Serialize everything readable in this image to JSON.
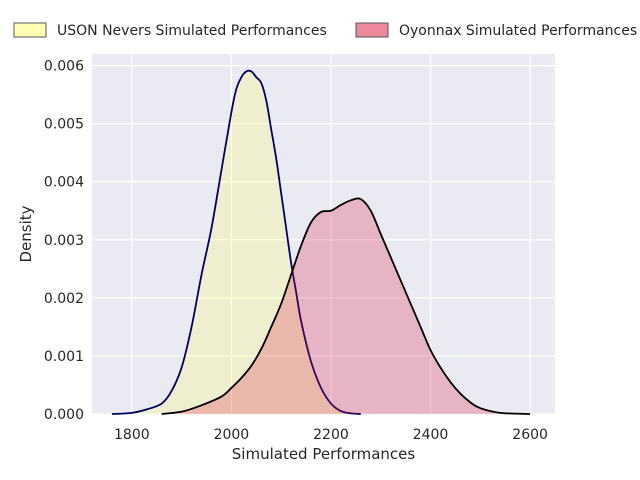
{
  "chart_data": {
    "type": "area",
    "title": "",
    "xlabel": "Simulated Performances",
    "ylabel": "Density",
    "xlim": [
      1720,
      2650
    ],
    "ylim": [
      0,
      0.0062
    ],
    "xticks": [
      1800,
      2000,
      2200,
      2400,
      2600
    ],
    "xtick_labels": [
      "1800",
      "2000",
      "2200",
      "2400",
      "2600"
    ],
    "yticks": [
      0,
      0.001,
      0.002,
      0.003,
      0.004,
      0.005,
      0.006
    ],
    "ytick_labels": [
      "0.000",
      "0.001",
      "0.002",
      "0.003",
      "0.004",
      "0.005",
      "0.006"
    ],
    "grid": true,
    "legend_position": "top",
    "background_color": "#eaeaf2",
    "series": [
      {
        "name": "USON Nevers Simulated Performances",
        "fill_color": "#ffff66",
        "line_color": "#000066",
        "x": [
          1760,
          1800,
          1830,
          1860,
          1880,
          1900,
          1920,
          1940,
          1960,
          1980,
          2000,
          2010,
          2020,
          2030,
          2040,
          2050,
          2060,
          2070,
          2080,
          2090,
          2100,
          2110,
          2120,
          2130,
          2140,
          2160,
          2180,
          2200,
          2220,
          2240,
          2260
        ],
        "y": [
          0.0,
          2e-05,
          8e-05,
          0.00018,
          0.0004,
          0.0008,
          0.0015,
          0.0024,
          0.0032,
          0.0042,
          0.0052,
          0.0056,
          0.0058,
          0.0059,
          0.0059,
          0.0058,
          0.0057,
          0.0054,
          0.0049,
          0.0044,
          0.0038,
          0.0032,
          0.0026,
          0.0021,
          0.0016,
          0.0009,
          0.00045,
          0.00018,
          5e-05,
          1e-05,
          0.0
        ]
      },
      {
        "name": "Oyonnax Simulated Performances",
        "fill_color": "#dc143c",
        "line_color": "#000000",
        "x": [
          1860,
          1900,
          1940,
          1980,
          2000,
          2020,
          2040,
          2060,
          2080,
          2100,
          2120,
          2140,
          2160,
          2180,
          2200,
          2220,
          2240,
          2260,
          2280,
          2300,
          2320,
          2340,
          2360,
          2380,
          2400,
          2420,
          2440,
          2460,
          2480,
          2500,
          2540,
          2600
        ],
        "y": [
          0.0,
          4e-05,
          0.00015,
          0.0003,
          0.00045,
          0.00062,
          0.00083,
          0.00112,
          0.0015,
          0.0019,
          0.0024,
          0.0029,
          0.0033,
          0.00348,
          0.0035,
          0.0036,
          0.00368,
          0.0037,
          0.0035,
          0.0031,
          0.0027,
          0.0023,
          0.0019,
          0.0015,
          0.0011,
          0.0008,
          0.00055,
          0.00035,
          0.0002,
          0.0001,
          2e-05,
          0.0
        ]
      }
    ]
  }
}
